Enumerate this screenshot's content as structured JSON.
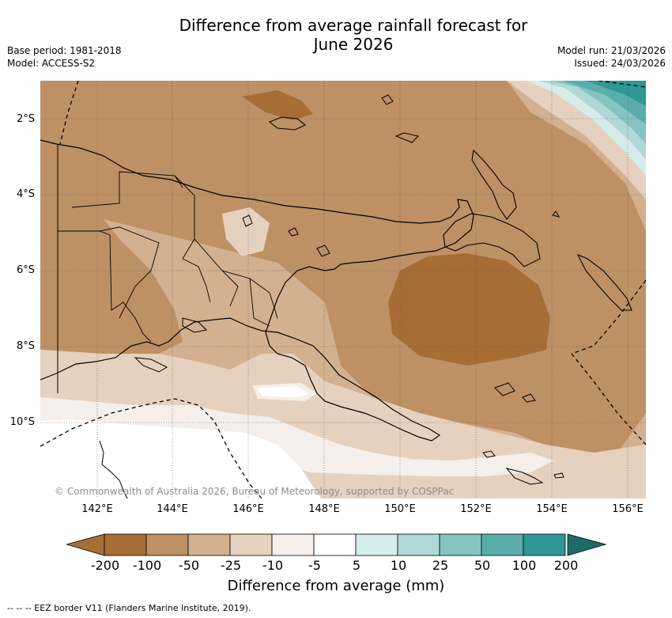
{
  "title": {
    "line1": "Difference from average rainfall forecast for",
    "line2": "June 2026"
  },
  "meta": {
    "base_period": "Base period: 1981-2018",
    "model": "Model: ACCESS-S2",
    "model_run": "Model run: 21/03/2026",
    "issued": "Issued: 24/03/2026"
  },
  "map": {
    "latitude_labels": [
      "2°S",
      "4°S",
      "6°S",
      "8°S",
      "10°S"
    ],
    "longitude_labels": [
      "142°E",
      "144°E",
      "146°E",
      "148°E",
      "150°E",
      "152°E",
      "154°E",
      "156°E"
    ],
    "copyright": "© Commonwealth of Australia 2026, Bureau of Meteorology, supported by COSPPac"
  },
  "legend": {
    "title": "Difference from average (mm)",
    "tick_labels": [
      "-200",
      "-100",
      "-50",
      "-25",
      "-10",
      "-5",
      "5",
      "10",
      "25",
      "50",
      "100",
      "200"
    ],
    "colors": [
      "#a66e35",
      "#be9065",
      "#d3b08f",
      "#e6d1bf",
      "#f4efea",
      "#ffffff",
      "#d6ecea",
      "#afd8d6",
      "#86c4c1",
      "#5aadab",
      "#2f9794",
      "#1d6c6a"
    ]
  },
  "footer": {
    "eez_note": "--  --  -- EEZ border V11 (Flanders Marine Institute, 2019)."
  }
}
